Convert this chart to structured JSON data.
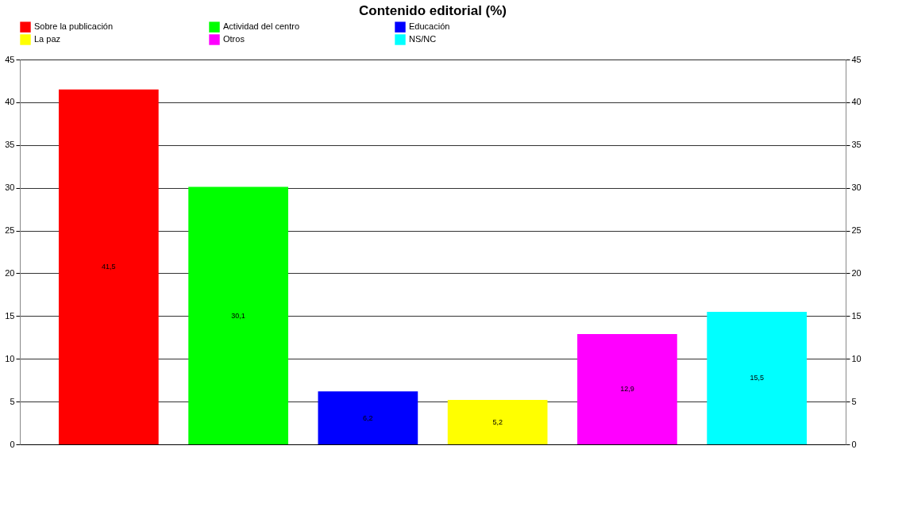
{
  "chart_data": {
    "type": "bar",
    "title": "Contenido editorial (%)",
    "categories": [
      null
    ],
    "series": [
      {
        "name": "Sobre la publicación",
        "color": "#ff0000",
        "values": [
          41.5
        ],
        "value_labels": [
          "41,5"
        ]
      },
      {
        "name": "Actividad del centro",
        "color": "#00ff00",
        "values": [
          30.1
        ],
        "value_labels": [
          "30,1"
        ]
      },
      {
        "name": "Educación",
        "color": "#0000ff",
        "values": [
          6.2
        ],
        "value_labels": [
          "6,2"
        ]
      },
      {
        "name": "La paz",
        "color": "#ffff00",
        "values": [
          5.2
        ],
        "value_labels": [
          "5,2"
        ]
      },
      {
        "name": "Otros",
        "color": "#ff00ff",
        "values": [
          12.9
        ],
        "value_labels": [
          "12,9"
        ]
      },
      {
        "name": "NS/NC",
        "color": "#00ffff",
        "values": [
          15.5
        ],
        "value_labels": [
          "15,5"
        ]
      }
    ],
    "ylim": [
      0,
      45
    ],
    "yticks": [
      0,
      5,
      10,
      15,
      20,
      25,
      30,
      35,
      40,
      45
    ],
    "y2lim": [
      0,
      45
    ],
    "y2ticks": [
      0,
      5,
      10,
      15,
      20,
      25,
      30,
      35,
      40,
      45
    ],
    "grid": "y",
    "legend": "top"
  }
}
